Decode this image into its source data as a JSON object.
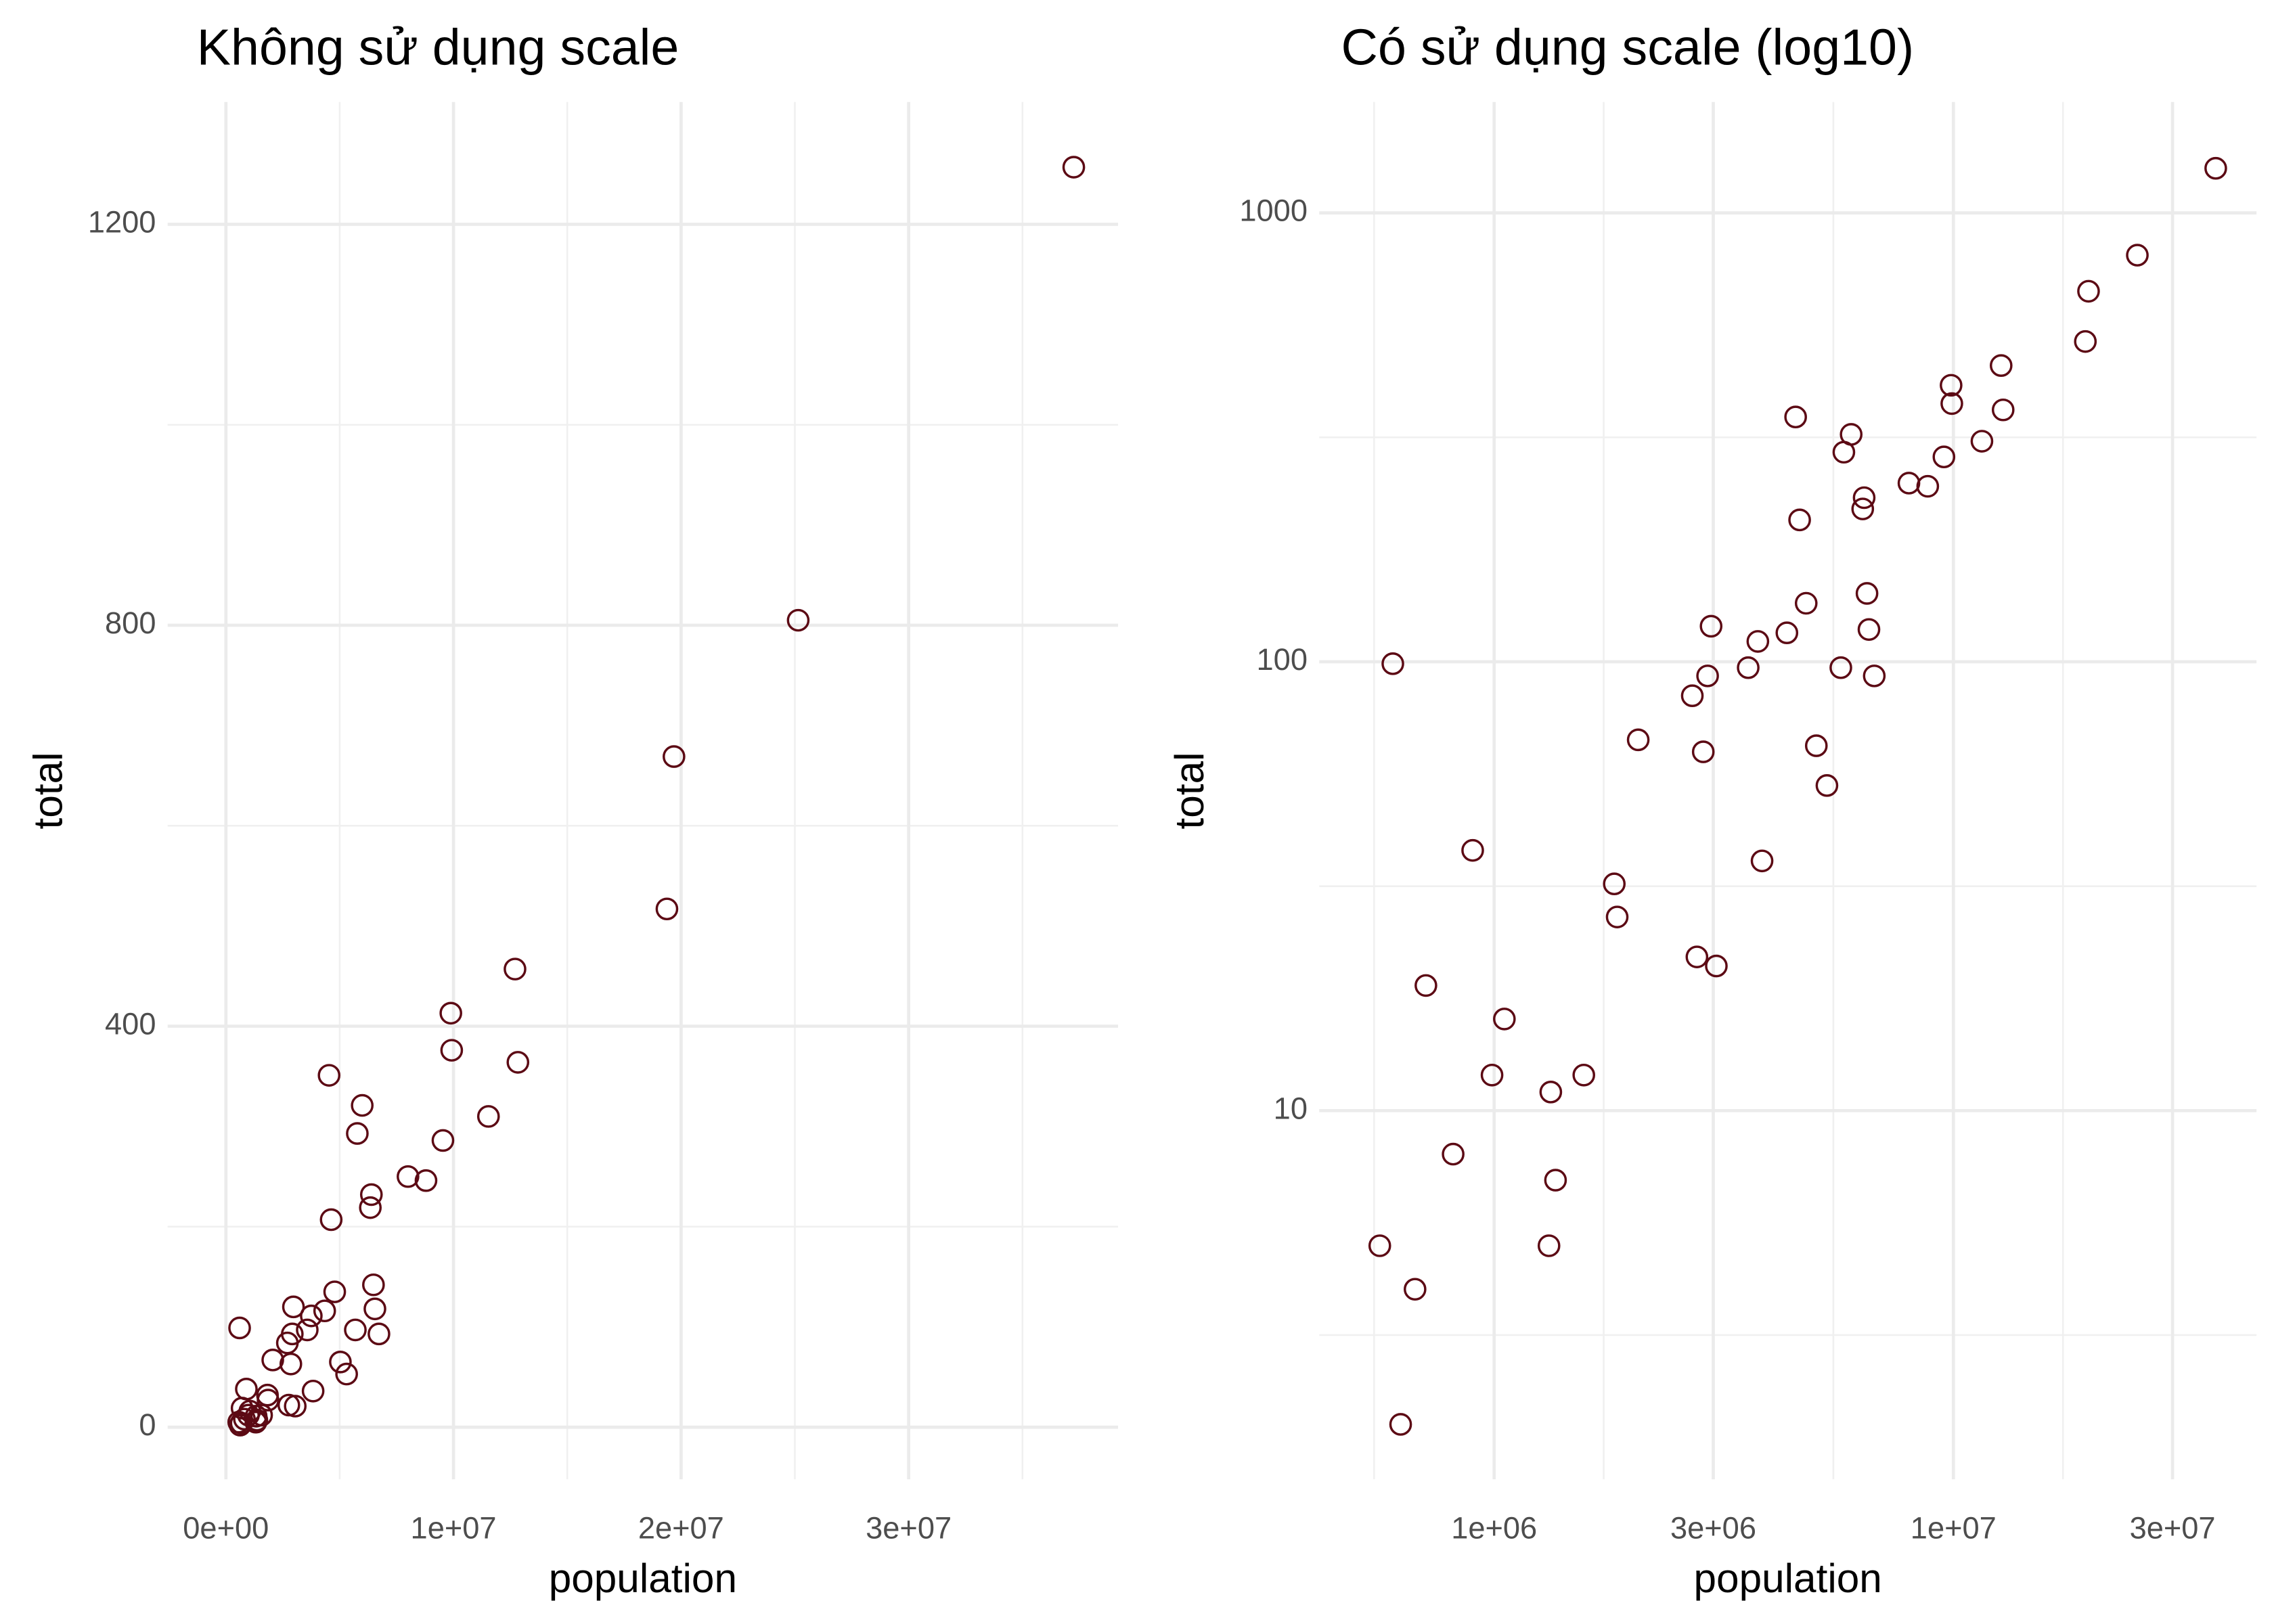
{
  "chart_data": [
    {
      "type": "scatter",
      "title": "Không sử dụng scale",
      "x_label": "population",
      "y_label": "total",
      "x": [
        4779736,
        710231,
        6392017,
        2915918,
        37253956,
        5029196,
        3574097,
        897934,
        601723,
        19687653,
        9920000,
        1360301,
        1567582,
        12830632,
        6483802,
        3046355,
        2853118,
        4339367,
        4533372,
        1328361,
        5773552,
        6547629,
        9883640,
        5303925,
        2967297,
        5988927,
        989415,
        1826341,
        2700551,
        1316470,
        8791894,
        2059179,
        19378102,
        9535483,
        672591,
        11536504,
        3751351,
        3831074,
        12702379,
        1052567,
        4625364,
        814180,
        6346105,
        25145561,
        2763885,
        625741,
        8001024,
        6724540,
        1852994,
        5686986,
        563626
      ],
      "values": [
        135,
        19,
        232,
        93,
        1257,
        65,
        97,
        38,
        99,
        669,
        376,
        7,
        12,
        364,
        142,
        21,
        63,
        116,
        351,
        11,
        293,
        118,
        413,
        53,
        120,
        321,
        12,
        32,
        84,
        5,
        246,
        67,
        517,
        286,
        4,
        310,
        111,
        36,
        457,
        16,
        207,
        8,
        219,
        805,
        22,
        2,
        250,
        93,
        27,
        97,
        5
      ],
      "color": "#5c0a14",
      "grid": true,
      "log_x": false,
      "log_y": false,
      "xlim": [
        -2560000,
        39200000
      ],
      "ylim": [
        -52,
        1322
      ],
      "xticks": [
        {
          "value": 0,
          "label": "0e+00"
        },
        {
          "value": 10000000,
          "label": "1e+07"
        },
        {
          "value": 20000000,
          "label": "2e+07"
        },
        {
          "value": 30000000,
          "label": "3e+07"
        }
      ],
      "yticks": [
        0,
        400,
        800,
        1200
      ],
      "minor_xticks": [
        5000000,
        15000000,
        25000000,
        35000000
      ],
      "minor_yticks": [
        200,
        600,
        1000
      ]
    },
    {
      "type": "scatter",
      "title": "Có sử dụng scale (log10)",
      "x_label": "population",
      "y_label": "total",
      "x": [
        4779736,
        710231,
        6392017,
        2915918,
        37253956,
        5029196,
        3574097,
        897934,
        601723,
        19687653,
        9920000,
        1360301,
        1567582,
        12830632,
        6483802,
        3046355,
        2853118,
        4339367,
        4533372,
        1328361,
        5773552,
        6547629,
        9883640,
        5303925,
        2967297,
        5988927,
        989415,
        1826341,
        2700551,
        1316470,
        8791894,
        2059179,
        19378102,
        9535483,
        672591,
        11536504,
        3751351,
        3831074,
        12702379,
        1052567,
        4625364,
        814180,
        6346105,
        25145561,
        2763885,
        625741,
        8001024,
        6724540,
        1852994,
        5686986,
        563626
      ],
      "values": [
        135,
        19,
        232,
        93,
        1257,
        65,
        97,
        38,
        99,
        669,
        376,
        7,
        12,
        364,
        142,
        21,
        63,
        116,
        351,
        11,
        293,
        118,
        413,
        53,
        120,
        321,
        12,
        32,
        84,
        5,
        246,
        67,
        517,
        286,
        4,
        310,
        111,
        36,
        457,
        16,
        207,
        8,
        219,
        805,
        22,
        2,
        250,
        93,
        27,
        97,
        5
      ],
      "color": "#5c0a14",
      "grid": true,
      "log_x": true,
      "log_y": true,
      "xlim": [
        416000,
        45700000
      ],
      "ylim": [
        1.509,
        1766
      ],
      "xticks": [
        {
          "value": 1000000,
          "label": "1e+06"
        },
        {
          "value": 3000000,
          "label": "3e+06"
        },
        {
          "value": 10000000,
          "label": "1e+07"
        },
        {
          "value": 30000000,
          "label": "3e+07"
        }
      ],
      "yticks": [
        10,
        100,
        1000
      ],
      "minor_xticks": [
        547723,
        1732051,
        5477226,
        17320508
      ],
      "minor_yticks": [
        3.162,
        31.62,
        316.2
      ]
    }
  ]
}
